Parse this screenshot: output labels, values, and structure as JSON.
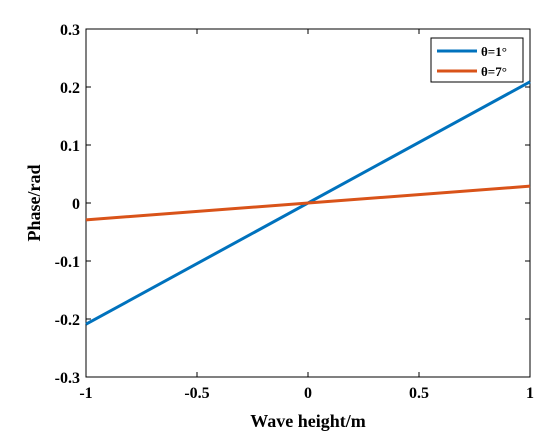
{
  "chart_data": {
    "type": "line",
    "xlabel": "Wave height/m",
    "ylabel": "Phase/rad",
    "xlim": [
      -1,
      1
    ],
    "ylim": [
      -0.3,
      0.3
    ],
    "x_ticks": [
      -1,
      -0.5,
      0,
      0.5,
      1
    ],
    "x_tick_labels": [
      "-1",
      "-0.5",
      "0",
      "0.5",
      "1"
    ],
    "y_ticks": [
      -0.3,
      -0.2,
      -0.1,
      0,
      0.1,
      0.2,
      0.3
    ],
    "y_tick_labels": [
      "-0.3",
      "-0.2",
      "-0.1",
      "0",
      "0.1",
      "0.2",
      "0.3"
    ],
    "grid": false,
    "legend_position": "top-right",
    "series": [
      {
        "name": "θ=1°",
        "color": "#0072BD",
        "x": [
          -1,
          1
        ],
        "y": [
          -0.209,
          0.209
        ]
      },
      {
        "name": "θ=7°",
        "color": "#D95319",
        "x": [
          -1,
          1
        ],
        "y": [
          -0.029,
          0.029
        ]
      }
    ]
  }
}
